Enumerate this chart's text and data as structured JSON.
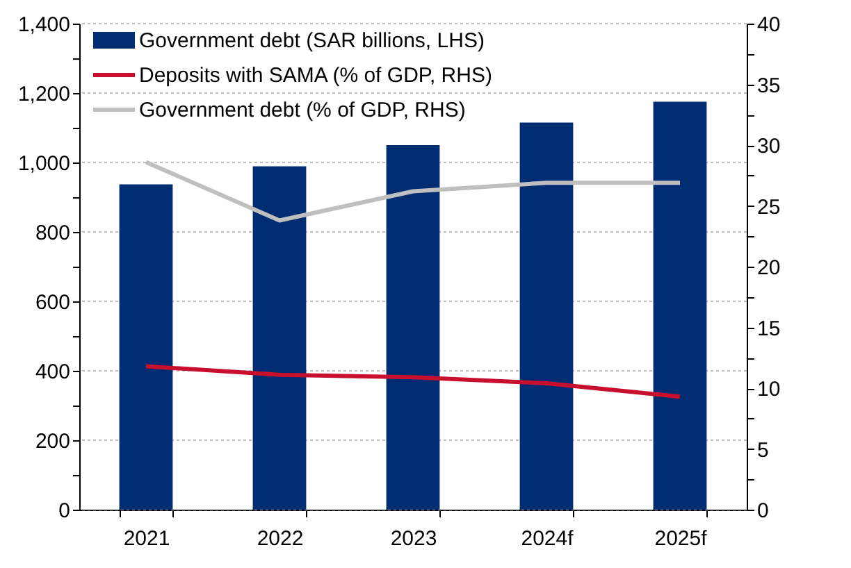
{
  "chart_data": {
    "type": "bar",
    "categories": [
      "2021",
      "2022",
      "2023",
      "2024f",
      "2025f"
    ],
    "series": [
      {
        "name": "Government debt (SAR billions, LHS)",
        "color": "#002d72",
        "values": [
          937,
          989,
          1050,
          1115,
          1175
        ]
      },
      {
        "name": "Deposits with SAMA (% of GDP, RHS)",
        "type": "line",
        "axis": "y2",
        "color": "#c8102e",
        "values": [
          11.8,
          11.1,
          10.9,
          10.4,
          9.3
        ]
      },
      {
        "name": "Government debt (% of GDP, RHS)",
        "type": "line",
        "axis": "y2",
        "color": "#bfbfbf",
        "values": [
          28.6,
          23.8,
          26.2,
          26.9,
          26.9
        ]
      }
    ],
    "ylim": [
      0,
      1400
    ],
    "yticks": [
      0,
      {
        "value": 100,
        "label": null
      },
      {
        "value": 200,
        "label": "200"
      },
      {
        "value": 300,
        "label": null
      },
      {
        "value": 400,
        "label": "400"
      },
      {
        "value": 500,
        "label": null
      },
      {
        "value": 600,
        "label": "600"
      },
      {
        "value": 700,
        "label": null
      },
      {
        "value": 800,
        "label": "800"
      },
      {
        "value": 900,
        "label": null
      },
      {
        "value": 1000,
        "label": "1,000"
      },
      {
        "value": 1100,
        "label": null
      },
      {
        "value": 1200,
        "label": "1,200"
      },
      {
        "value": 1300,
        "label": null
      },
      {
        "value": 1400,
        "label": "1,400"
      }
    ],
    "y2lim": [
      0,
      40
    ],
    "y2ticks": [
      0,
      {
        "value": 2.5,
        "label": null
      },
      5,
      {
        "value": 7.5,
        "label": null
      },
      10,
      {
        "value": 12.5,
        "label": null
      },
      15,
      {
        "value": 17.5,
        "label": null
      },
      20,
      {
        "value": 22.5,
        "label": null
      },
      25,
      {
        "value": 27.5,
        "label": null
      },
      30,
      {
        "value": 32.5,
        "label": null
      },
      35,
      {
        "value": 37.5,
        "label": null
      },
      40
    ],
    "grid": "y",
    "legend": "top left",
    "line_style": "solid",
    "marker": "none"
  }
}
